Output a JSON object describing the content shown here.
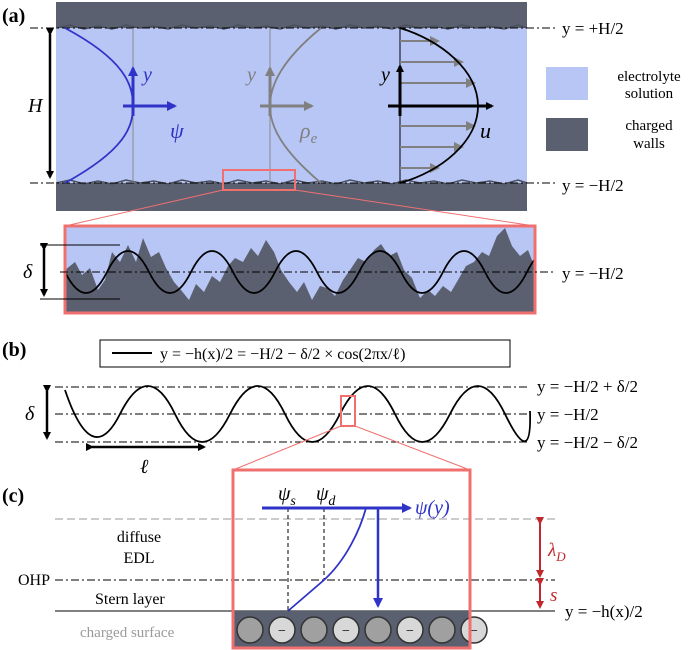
{
  "panels": {
    "a": "(a)",
    "b": "(b)",
    "c": "(c)"
  },
  "panel_a": {
    "top_line": "y = +H/2",
    "bottom_line": "y = −H/2",
    "height_label": "H",
    "axis_y1": "y",
    "axis_psi": "ψ",
    "axis_y2": "y",
    "axis_rho": "ρ",
    "axis_rho_sub": "e",
    "axis_y3": "y",
    "axis_u": "u",
    "legend": {
      "electrolyte_line1": "electrolyte",
      "electrolyte_line2": "solution",
      "walls_line1": "charged",
      "walls_line2": "walls"
    },
    "zoom_delta": "δ",
    "zoom_line": "y = −H/2"
  },
  "panel_b": {
    "equation": "y = −h(x)/2 = −H/2 − δ/2 × cos(2πx/ℓ)",
    "line_top": "y = −H/2 + δ/2",
    "line_mid": "y = −H/2",
    "line_bot": "y = −H/2 − δ/2",
    "delta": "δ",
    "wavelength": "ℓ"
  },
  "panel_c": {
    "psi_s": "ψ",
    "psi_s_sub": "s",
    "psi_d": "ψ",
    "psi_d_sub": "d",
    "psi_axis": "ψ(y)",
    "diffuse_line1": "diffuse",
    "diffuse_line2": "EDL",
    "ohp": "OHP",
    "stern": "Stern layer",
    "surface": "charged surface",
    "lambda": "λ",
    "lambda_sub": "D",
    "s": "s",
    "wall_line": "y = −h(x)/2",
    "ion_sign": "−"
  },
  "colors": {
    "electrolyte": "#b8c6f5",
    "walls": "#5b6070",
    "psi_blue": "#2f33c8",
    "rho_gray": "#808080",
    "zoom_red": "#f07070",
    "lambda_red": "#c0282d"
  }
}
